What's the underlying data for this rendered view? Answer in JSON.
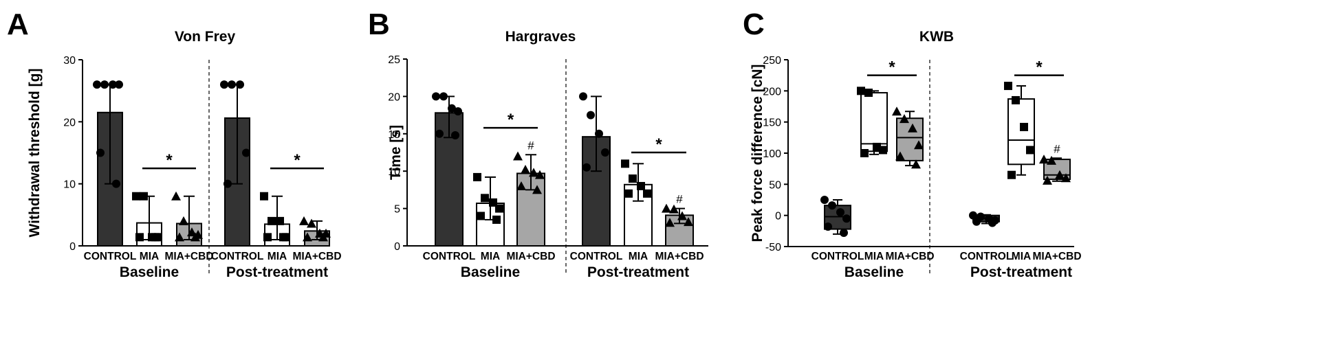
{
  "colors": {
    "control": "#333333",
    "mia": "#ffffff",
    "mia_cbd": "#a6a6a6",
    "ink": "#000000"
  },
  "chart_data": [
    {
      "type": "bar",
      "panel_label": "A",
      "title": "Von Frey",
      "ylabel": "Withdrawal threshold [g]",
      "xlabel": "",
      "ylim": [
        0,
        30
      ],
      "yticks": [
        0,
        10,
        20,
        30
      ],
      "categories": [
        "CONTROL",
        "MIA",
        "MIA+CBD"
      ],
      "groups": [
        {
          "name": "Baseline",
          "bars": [
            {
              "category": "CONTROL",
              "value": 21.5,
              "err_low": 10,
              "err_high": 26,
              "points": [
                26,
                26,
                26,
                26,
                15,
                10
              ],
              "marker": "circle"
            },
            {
              "category": "MIA",
              "value": 3.7,
              "err_low": 1,
              "err_high": 8,
              "points": [
                8,
                8,
                1.4,
                1.4,
                1.4,
                1.4
              ],
              "marker": "square"
            },
            {
              "category": "MIA+CBD",
              "value": 3.6,
              "err_low": 1,
              "err_high": 8,
              "points": [
                8,
                4,
                2.2,
                1.8,
                1.4,
                1.4
              ],
              "marker": "triangle"
            }
          ],
          "significance": {
            "from": "MIA",
            "to": "MIA+CBD",
            "y": 12.5,
            "label": "*"
          }
        },
        {
          "name": "Post-treatment",
          "bars": [
            {
              "category": "CONTROL",
              "value": 20.6,
              "err_low": 10,
              "err_high": 26,
              "points": [
                26,
                26,
                26,
                15,
                10
              ],
              "marker": "circle"
            },
            {
              "category": "MIA",
              "value": 3.5,
              "err_low": 1,
              "err_high": 8,
              "points": [
                8,
                4,
                4,
                1.4,
                1.4,
                1.4
              ],
              "marker": "square"
            },
            {
              "category": "MIA+CBD",
              "value": 2.4,
              "err_low": 1,
              "err_high": 4,
              "points": [
                4,
                3.6,
                2,
                2,
                1.4,
                1.4
              ],
              "marker": "triangle"
            }
          ],
          "significance": {
            "from": "MIA",
            "to": "MIA+CBD",
            "y": 12.5,
            "label": "*"
          }
        }
      ]
    },
    {
      "type": "bar",
      "panel_label": "B",
      "title": "Hargraves",
      "ylabel": "Time [s]",
      "xlabel": "",
      "ylim": [
        0,
        25
      ],
      "yticks": [
        0,
        5,
        10,
        15,
        20,
        25
      ],
      "categories": [
        "CONTROL",
        "MIA",
        "MIA+CBD"
      ],
      "groups": [
        {
          "name": "Baseline",
          "bars": [
            {
              "category": "CONTROL",
              "value": 17.8,
              "err_low": 14.5,
              "err_high": 20,
              "points": [
                20,
                20,
                18.4,
                18,
                15,
                14.8
              ],
              "marker": "circle"
            },
            {
              "category": "MIA",
              "value": 5.7,
              "err_low": 3.5,
              "err_high": 9.2,
              "points": [
                9.2,
                6.4,
                5.8,
                5,
                4,
                3.5
              ],
              "marker": "square"
            },
            {
              "category": "MIA+CBD",
              "value": 9.7,
              "err_low": 7.5,
              "err_high": 12.2,
              "points": [
                12,
                10.2,
                9.8,
                9.5,
                8,
                7.5
              ],
              "marker": "triangle",
              "annotation": "#"
            }
          ],
          "significance": {
            "from": "MIA",
            "to": "MIA+CBD",
            "y": 15.8,
            "label": "*"
          }
        },
        {
          "name": "Post-treatment",
          "bars": [
            {
              "category": "CONTROL",
              "value": 14.6,
              "err_low": 10,
              "err_high": 20,
              "points": [
                20,
                17.5,
                15,
                12.5,
                10.5
              ],
              "marker": "circle"
            },
            {
              "category": "MIA",
              "value": 8.2,
              "err_low": 6,
              "err_high": 11,
              "points": [
                11,
                9,
                8,
                7,
                7
              ],
              "marker": "square"
            },
            {
              "category": "MIA+CBD",
              "value": 4.1,
              "err_low": 3,
              "err_high": 5,
              "points": [
                5,
                4.9,
                4,
                3.2,
                3.1
              ],
              "marker": "triangle",
              "annotation": "#"
            }
          ],
          "significance": {
            "from": "MIA",
            "to": "MIA+CBD",
            "y": 12.5,
            "label": "*"
          }
        }
      ]
    },
    {
      "type": "box",
      "panel_label": "C",
      "title": "KWB",
      "ylabel": "Peak force difference [cN]",
      "xlabel": "",
      "ylim": [
        -50,
        250
      ],
      "yticks": [
        -50,
        0,
        50,
        100,
        150,
        200,
        250
      ],
      "categories": [
        "CONTROL",
        "MIA",
        "MIA+CBD"
      ],
      "groups": [
        {
          "name": "Baseline",
          "boxes": [
            {
              "category": "CONTROL",
              "min": -30,
              "q1": -22,
              "median": -2,
              "q3": 16,
              "max": 25,
              "points": [
                25,
                16,
                5,
                -5,
                -18,
                -28
              ],
              "marker": "circle"
            },
            {
              "category": "MIA",
              "min": 98,
              "q1": 103,
              "median": 115,
              "q3": 197,
              "max": 200,
              "points": [
                200,
                197,
                110,
                105,
                100
              ],
              "marker": "square"
            },
            {
              "category": "MIA+CBD",
              "min": 80,
              "q1": 88,
              "median": 125,
              "q3": 156,
              "max": 167,
              "points": [
                167,
                155,
                140,
                113,
                95,
                82
              ],
              "marker": "triangle"
            }
          ],
          "significance": {
            "from": "MIA",
            "to": "MIA+CBD",
            "y": 225,
            "label": "*"
          }
        },
        {
          "name": "Post-treatment",
          "boxes": [
            {
              "category": "CONTROL",
              "min": -13,
              "q1": -10,
              "median": -5,
              "q3": 0,
              "max": 1,
              "points": [
                0,
                -2,
                -5,
                -8,
                -10,
                -12
              ],
              "marker": "circle"
            },
            {
              "category": "MIA",
              "min": 65,
              "q1": 82,
              "median": 121,
              "q3": 187,
              "max": 208,
              "points": [
                208,
                185,
                142,
                105,
                65
              ],
              "marker": "square"
            },
            {
              "category": "MIA+CBD",
              "min": 55,
              "q1": 58,
              "median": 65,
              "q3": 90,
              "max": 92,
              "points": [
                90,
                88,
                65,
                60,
                56
              ],
              "marker": "triangle",
              "annotation": "#"
            }
          ],
          "significance": {
            "from": "MIA",
            "to": "MIA+CBD",
            "y": 225,
            "label": "*"
          }
        }
      ]
    }
  ]
}
